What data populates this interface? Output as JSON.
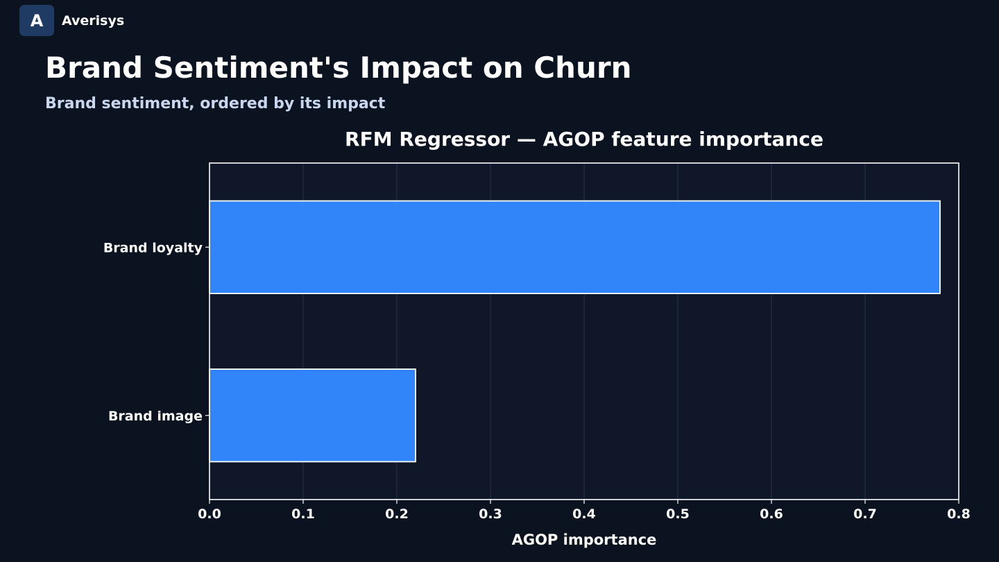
{
  "brand": {
    "logo_letter": "A",
    "name": "Averisys"
  },
  "header": {
    "title": "Brand Sentiment's Impact on Churn",
    "subtitle": "Brand sentiment, ordered by its impact"
  },
  "colors": {
    "background": "#0b1220",
    "plot_background": "#0f1729",
    "bar": "#3285f8",
    "subtitle": "#c8d6ee"
  },
  "chart_data": {
    "type": "bar",
    "orientation": "horizontal",
    "title": "RFM Regressor — AGOP feature importance",
    "xlabel": "AGOP importance",
    "ylabel": "",
    "categories": [
      "Brand loyalty",
      "Brand image"
    ],
    "values": [
      0.78,
      0.22
    ],
    "xlim": [
      0,
      0.8
    ],
    "xticks": [
      "0.0",
      "0.1",
      "0.2",
      "0.3",
      "0.4",
      "0.5",
      "0.6",
      "0.7",
      "0.8"
    ],
    "grid": "vertical"
  }
}
